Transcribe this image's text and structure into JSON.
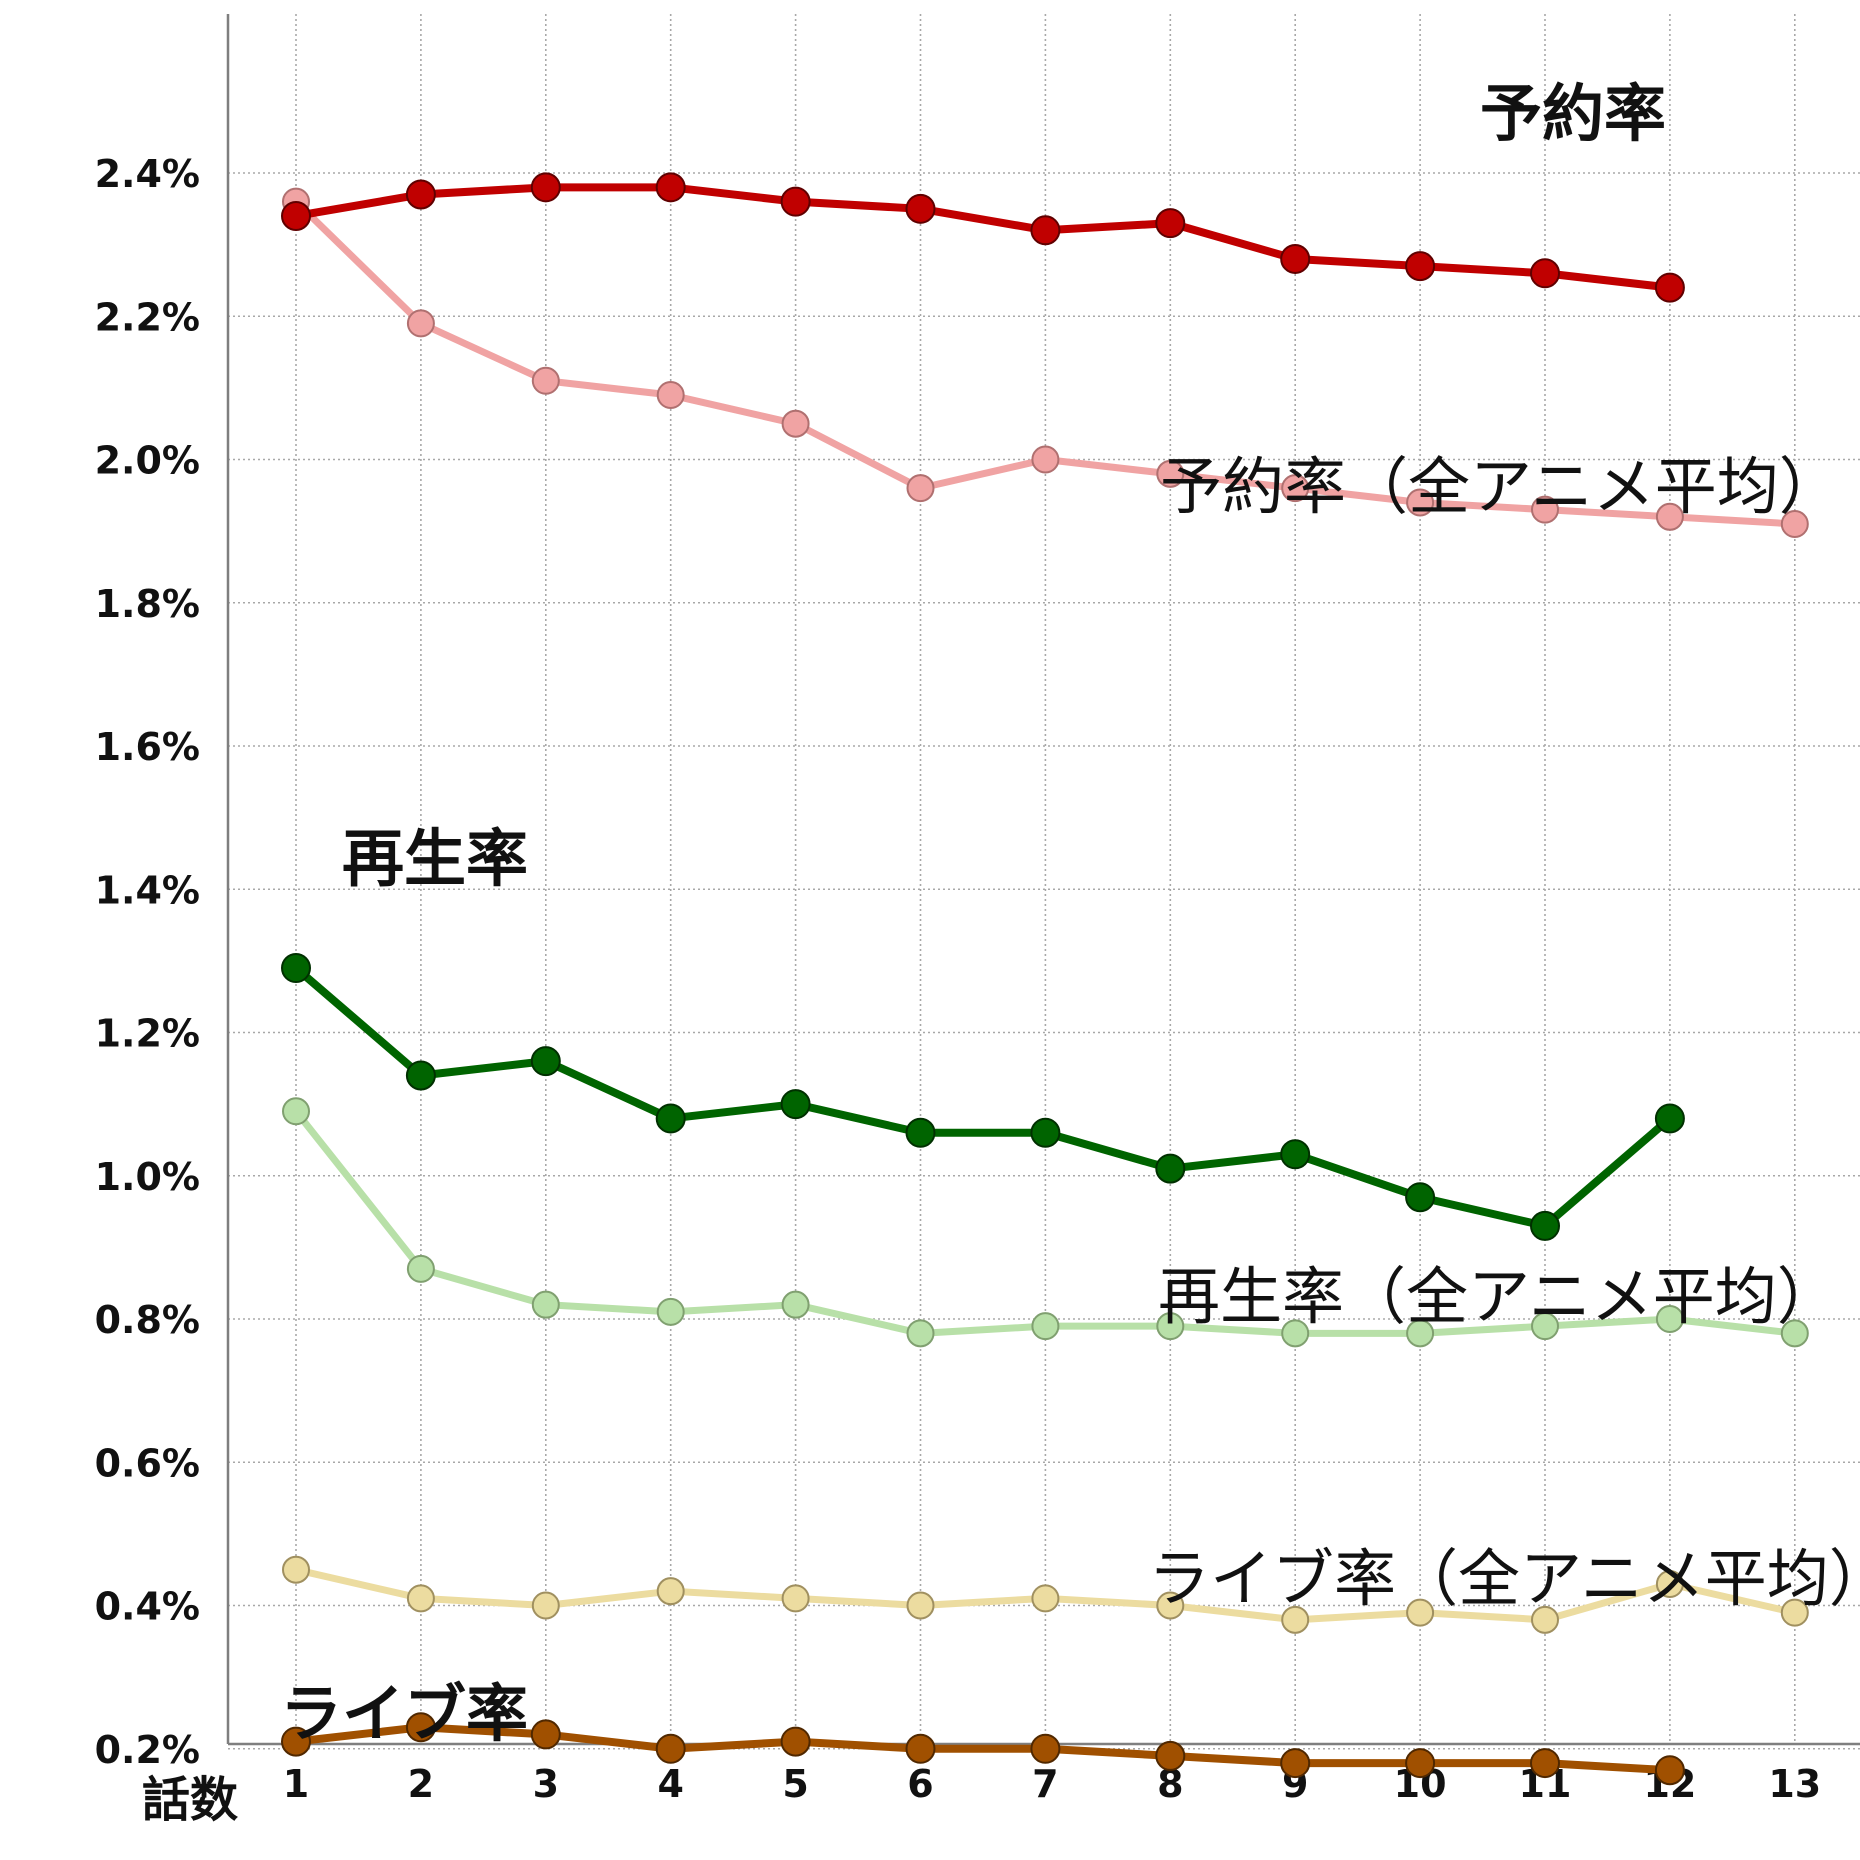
{
  "chart_data": {
    "type": "line",
    "xlabel": "話数",
    "ylabel": "",
    "x": [
      1,
      2,
      3,
      4,
      5,
      6,
      7,
      8,
      9,
      10,
      11,
      12,
      13
    ],
    "ylim": [
      0.0,
      2.5
    ],
    "y_ticks": [
      "0.2%",
      "0.4%",
      "0.6%",
      "0.8%",
      "1.0%",
      "1.2%",
      "1.4%",
      "1.6%",
      "1.8%",
      "2.0%",
      "2.2%",
      "2.4%"
    ],
    "grid": true,
    "series": [
      {
        "key": "res_avg",
        "name": "予約率（全アニメ平均）",
        "color": "#f0a3a3",
        "marker_edge": "#b07070",
        "values": [
          2.36,
          2.19,
          2.11,
          2.09,
          2.05,
          1.96,
          2.0,
          1.98,
          1.96,
          1.94,
          1.93,
          1.92,
          1.91
        ]
      },
      {
        "key": "res",
        "name": "予約率",
        "color": "#c00000",
        "marker_edge": "#600000",
        "values": [
          2.34,
          2.37,
          2.38,
          2.38,
          2.36,
          2.35,
          2.32,
          2.33,
          2.28,
          2.27,
          2.26,
          2.24,
          null
        ]
      },
      {
        "key": "play_avg",
        "name": "再生率（全アニメ平均）",
        "color": "#b8e0a8",
        "marker_edge": "#80a070",
        "values": [
          1.09,
          0.87,
          0.82,
          0.81,
          0.82,
          0.78,
          0.79,
          0.79,
          0.78,
          0.78,
          0.79,
          0.8,
          0.78
        ]
      },
      {
        "key": "play",
        "name": "再生率",
        "color": "#006400",
        "marker_edge": "#003000",
        "values": [
          1.29,
          1.14,
          1.16,
          1.08,
          1.1,
          1.06,
          1.06,
          1.01,
          1.03,
          0.97,
          0.93,
          1.08,
          null
        ]
      },
      {
        "key": "live_avg",
        "name": "ライブ率（全アニメ平均）",
        "color": "#ecdca0",
        "marker_edge": "#a09060",
        "values": [
          0.45,
          0.41,
          0.4,
          0.42,
          0.41,
          0.4,
          0.41,
          0.4,
          0.38,
          0.39,
          0.38,
          0.43,
          0.39
        ]
      },
      {
        "key": "live",
        "name": "ライブ率",
        "color": "#a05000",
        "marker_edge": "#502800",
        "values": [
          0.21,
          0.23,
          0.22,
          0.2,
          0.21,
          0.2,
          0.2,
          0.19,
          0.18,
          0.18,
          0.18,
          0.17,
          null
        ]
      }
    ]
  }
}
